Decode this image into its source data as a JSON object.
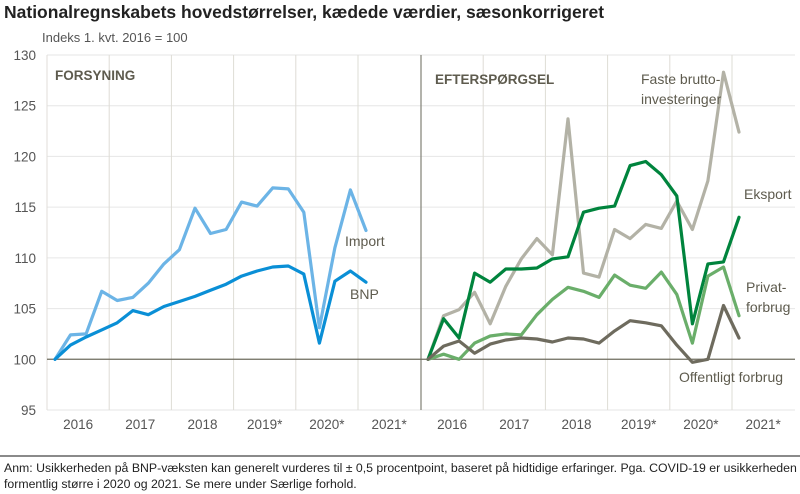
{
  "title": "Nationalregnskabets hovedstørrelser, kædede værdier, sæsonkorrigeret",
  "subtitle": "Indeks 1. kvt. 2016 = 100",
  "note": "Anm: Usikkerheden på BNP-væksten kan generelt vurderes til ± 0,5 procentpoint, baseret på hidtidige erfaringer. Pga. COVID-19 er usikkerheden formentlig større i 2020 og 2021. Se mere under Særlige forhold.",
  "chart_data": [
    {
      "type": "line",
      "title": "FORSYNING",
      "ylim": [
        95,
        130
      ],
      "yticks": [
        95,
        100,
        105,
        110,
        115,
        120,
        125,
        130
      ],
      "xticks": [
        "2016",
        "2017",
        "2018",
        "2019*",
        "2020*",
        "2021*"
      ],
      "x": [
        "2016K1",
        "2016K2",
        "2016K3",
        "2016K4",
        "2017K1",
        "2017K2",
        "2017K3",
        "2017K4",
        "2018K1",
        "2018K2",
        "2018K3",
        "2018K4",
        "2019K1",
        "2019K2",
        "2019K3",
        "2019K4",
        "2020K1",
        "2020K2",
        "2020K3",
        "2020K4",
        "2021K1"
      ],
      "grid": true,
      "series": [
        {
          "name": "Import",
          "color": "#6cb4e6",
          "values": [
            100,
            102.4,
            102.5,
            106.7,
            105.8,
            106.1,
            107.5,
            109.4,
            110.8,
            114.9,
            112.4,
            112.8,
            115.5,
            115.1,
            116.9,
            116.8,
            114.5,
            103.1,
            111.0,
            116.7,
            112.7
          ]
        },
        {
          "name": "BNP",
          "color": "#0a8fd6",
          "values": [
            100,
            101.4,
            102.2,
            102.9,
            103.6,
            104.8,
            104.4,
            105.2,
            105.7,
            106.2,
            106.8,
            107.4,
            108.2,
            108.7,
            109.1,
            109.2,
            108.4,
            101.6,
            107.7,
            108.7,
            107.6
          ]
        }
      ]
    },
    {
      "type": "line",
      "title": "EFTERSPØRGSEL",
      "ylim": [
        95,
        130
      ],
      "xticks": [
        "2016",
        "2017",
        "2018",
        "2019*",
        "2020*",
        "2021*"
      ],
      "x": [
        "2016K1",
        "2016K2",
        "2016K3",
        "2016K4",
        "2017K1",
        "2017K2",
        "2017K3",
        "2017K4",
        "2018K1",
        "2018K2",
        "2018K3",
        "2018K4",
        "2019K1",
        "2019K2",
        "2019K3",
        "2019K4",
        "2020K1",
        "2020K2",
        "2020K3",
        "2020K4",
        "2021K1"
      ],
      "grid": true,
      "series": [
        {
          "name": "Faste brutto-investeringer",
          "label1": "Faste brutto-",
          "label2": "investeringer",
          "color": "#b3b2a6",
          "values": [
            100,
            104.3,
            104.9,
            106.6,
            103.5,
            107.2,
            109.9,
            111.9,
            110.3,
            123.7,
            108.5,
            108.1,
            112.8,
            111.9,
            113.3,
            112.9,
            115.6,
            112.8,
            117.6,
            128.3,
            122.4
          ]
        },
        {
          "name": "Eksport",
          "color": "#00843d",
          "values": [
            100,
            104.0,
            102.1,
            108.5,
            107.6,
            108.9,
            108.9,
            109.0,
            109.9,
            110.1,
            114.5,
            114.9,
            115.1,
            119.1,
            119.5,
            118.2,
            116.1,
            103.5,
            109.4,
            109.6,
            114.0
          ]
        },
        {
          "name": "Privat-forbrug",
          "label1": "Privat-",
          "label2": "forbrug",
          "color": "#6aae6a",
          "values": [
            100,
            100.5,
            100.0,
            101.6,
            102.3,
            102.5,
            102.4,
            104.4,
            105.9,
            107.1,
            106.7,
            106.1,
            108.3,
            107.3,
            107.0,
            108.6,
            106.4,
            101.6,
            108.2,
            109.1,
            104.3
          ]
        },
        {
          "name": "Offentligt forbrug",
          "color": "#6e6b5e",
          "values": [
            100,
            101.3,
            101.8,
            100.6,
            101.5,
            101.9,
            102.1,
            102.0,
            101.7,
            102.1,
            102.0,
            101.6,
            102.8,
            103.8,
            103.6,
            103.3,
            101.4,
            99.7,
            100.0,
            105.3,
            102.1
          ]
        }
      ]
    }
  ]
}
